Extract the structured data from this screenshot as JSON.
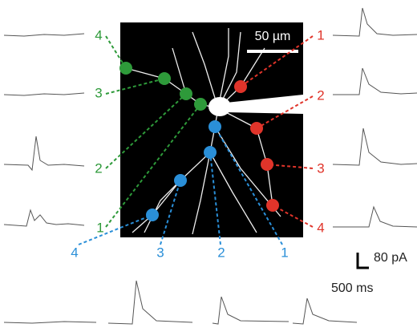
{
  "scale_bar": "50 µm",
  "green_labels": [
    "4",
    "3",
    "2",
    "1"
  ],
  "red_labels": [
    "1",
    "2",
    "3",
    "4"
  ],
  "blue_labels": [
    "4",
    "3",
    "2",
    "1"
  ],
  "calibration": {
    "current": "80 pA",
    "time": "500 ms"
  }
}
